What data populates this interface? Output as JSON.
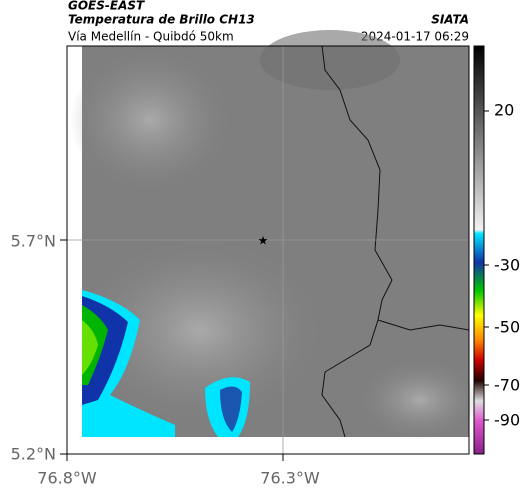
{
  "header": {
    "source": "GOES-EAST",
    "title": "Temperatura de Brillo CH13",
    "brand": "SIATA",
    "subtitle": "Vía Medellín - Quibdó 50km",
    "timestamp": "2024-01-17 06:29"
  },
  "map": {
    "lat_labels": [
      "5.7°N",
      "5.2°N"
    ],
    "lon_labels": [
      "76.8°W",
      "76.3°W"
    ]
  },
  "colorbar": {
    "tick_labels": [
      "20",
      "-30",
      "-50",
      "-70",
      "-90"
    ]
  }
}
